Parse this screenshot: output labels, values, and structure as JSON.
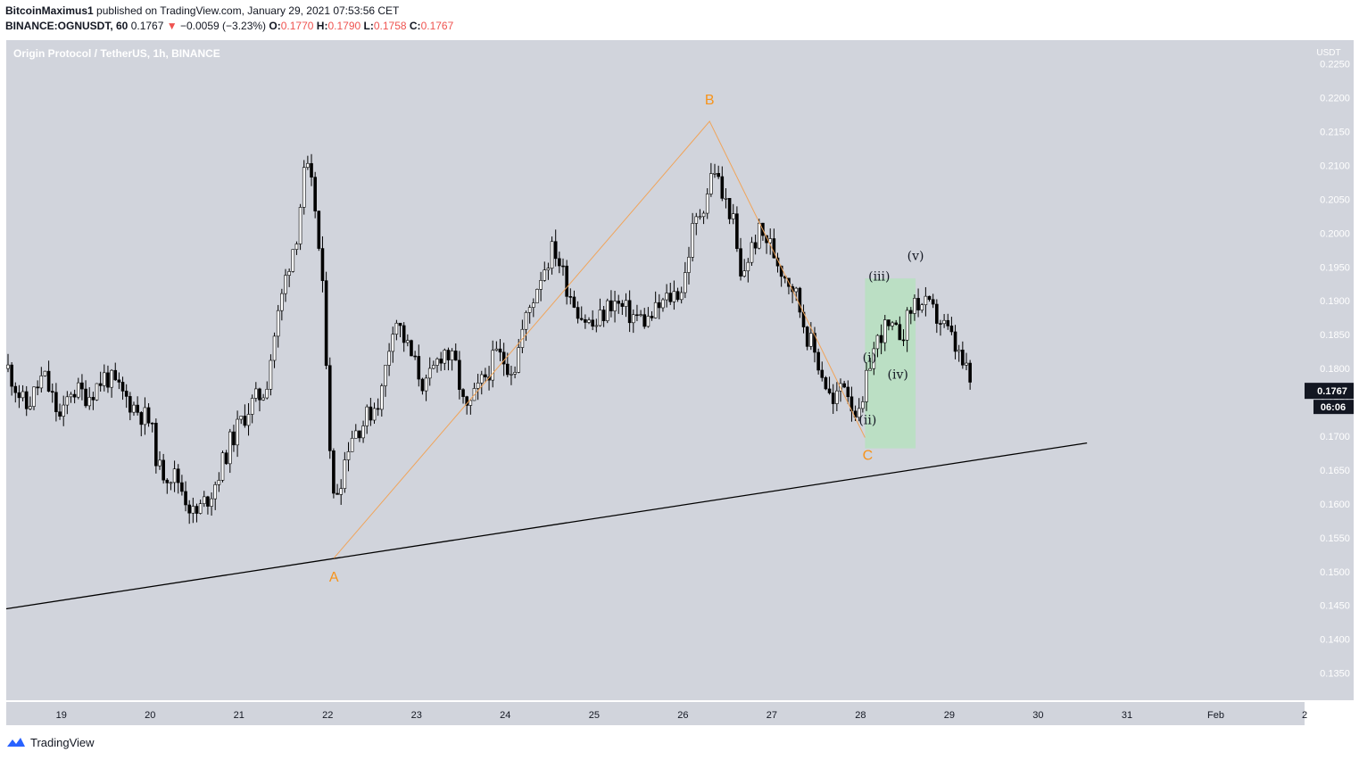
{
  "header": {
    "author": "BitcoinMaximus1",
    "published_text": "published on TradingView.com, January 29, 2021 07:53:56 CET",
    "symbol": "BINANCE:OGNUSDT, 60",
    "last": "0.1767",
    "change": "−0.0059 (−3.23%)",
    "o_label": "O:",
    "o": "0.1770",
    "h_label": "H:",
    "h": "0.1790",
    "l_label": "L:",
    "l": "0.1758",
    "c_label": "C:",
    "c": "0.1767"
  },
  "footer": {
    "brand": "TradingView"
  },
  "colors": {
    "plot_bg": "#d1d4dc",
    "candle": "#000000",
    "wave_label": "#f7931a",
    "wave_line": "#f0a45a",
    "box_fill": "#b7e1c0",
    "trendline": "#000000",
    "price_badge": "#131722"
  },
  "chart_data": {
    "type": "candlestick",
    "title": "Origin Protocol / TetherUS, 1h, BINANCE",
    "ylabel": "USDT",
    "ylim": [
      0.131,
      0.2285
    ],
    "y_ticks": [
      "0.2250",
      "0.2200",
      "0.2150",
      "0.2100",
      "0.2050",
      "0.2000",
      "0.1950",
      "0.1900",
      "0.1850",
      "0.1800",
      "0.1750",
      "0.1700",
      "0.1650",
      "0.1600",
      "0.1550",
      "0.1500",
      "0.1450",
      "0.1400",
      "0.1350"
    ],
    "x_ticks": [
      {
        "label": "19",
        "t": 19
      },
      {
        "label": "20",
        "t": 20
      },
      {
        "label": "21",
        "t": 21
      },
      {
        "label": "22",
        "t": 22
      },
      {
        "label": "23",
        "t": 23
      },
      {
        "label": "24",
        "t": 24
      },
      {
        "label": "25",
        "t": 25
      },
      {
        "label": "26",
        "t": 26
      },
      {
        "label": "27",
        "t": 27
      },
      {
        "label": "28",
        "t": 28
      },
      {
        "label": "29",
        "t": 29
      },
      {
        "label": "30",
        "t": 30
      },
      {
        "label": "31",
        "t": 31
      },
      {
        "label": "Feb",
        "t": 32
      },
      {
        "label": "2",
        "t": 33
      }
    ],
    "xlim": [
      18.38,
      33.0
    ],
    "current_price": "0.1767",
    "countdown": "06:06",
    "close_path": [
      [
        18.4,
        0.18
      ],
      [
        18.6,
        0.174
      ],
      [
        18.8,
        0.179
      ],
      [
        19.0,
        0.172
      ],
      [
        19.1,
        0.177
      ],
      [
        19.3,
        0.176
      ],
      [
        19.5,
        0.179
      ],
      [
        19.7,
        0.176
      ],
      [
        19.85,
        0.174
      ],
      [
        20.0,
        0.172
      ],
      [
        20.1,
        0.165
      ],
      [
        20.3,
        0.164
      ],
      [
        20.5,
        0.158
      ],
      [
        20.7,
        0.162
      ],
      [
        20.9,
        0.169
      ],
      [
        21.1,
        0.174
      ],
      [
        21.3,
        0.177
      ],
      [
        21.4,
        0.185
      ],
      [
        21.55,
        0.195
      ],
      [
        21.65,
        0.2
      ],
      [
        21.75,
        0.21
      ],
      [
        21.85,
        0.205
      ],
      [
        21.95,
        0.19
      ],
      [
        22.0,
        0.178
      ],
      [
        22.05,
        0.16
      ],
      [
        22.15,
        0.164
      ],
      [
        22.25,
        0.17
      ],
      [
        22.4,
        0.172
      ],
      [
        22.6,
        0.176
      ],
      [
        22.75,
        0.188
      ],
      [
        22.9,
        0.183
      ],
      [
        23.0,
        0.18
      ],
      [
        23.1,
        0.177
      ],
      [
        23.3,
        0.183
      ],
      [
        23.45,
        0.18
      ],
      [
        23.55,
        0.173
      ],
      [
        23.7,
        0.177
      ],
      [
        23.9,
        0.182
      ],
      [
        24.1,
        0.18
      ],
      [
        24.2,
        0.186
      ],
      [
        24.4,
        0.194
      ],
      [
        24.55,
        0.198
      ],
      [
        24.7,
        0.192
      ],
      [
        24.85,
        0.188
      ],
      [
        25.0,
        0.186
      ],
      [
        25.2,
        0.19
      ],
      [
        25.4,
        0.188
      ],
      [
        25.6,
        0.187
      ],
      [
        25.8,
        0.19
      ],
      [
        26.0,
        0.192
      ],
      [
        26.1,
        0.2
      ],
      [
        26.25,
        0.205
      ],
      [
        26.35,
        0.21
      ],
      [
        26.45,
        0.205
      ],
      [
        26.55,
        0.203
      ],
      [
        26.65,
        0.193
      ],
      [
        26.75,
        0.197
      ],
      [
        26.85,
        0.2
      ],
      [
        26.95,
        0.199
      ],
      [
        27.1,
        0.195
      ],
      [
        27.25,
        0.192
      ],
      [
        27.4,
        0.185
      ],
      [
        27.55,
        0.18
      ],
      [
        27.7,
        0.174
      ],
      [
        27.8,
        0.179
      ],
      [
        27.9,
        0.175
      ],
      [
        28.0,
        0.172
      ],
      [
        28.1,
        0.181
      ],
      [
        28.25,
        0.186
      ],
      [
        28.4,
        0.185
      ],
      [
        28.5,
        0.186
      ],
      [
        28.6,
        0.19
      ],
      [
        28.75,
        0.189
      ],
      [
        28.9,
        0.187
      ],
      [
        29.0,
        0.185
      ],
      [
        29.1,
        0.182
      ],
      [
        29.2,
        0.179
      ],
      [
        29.27,
        0.1767
      ]
    ],
    "trendline": [
      [
        18.38,
        0.1445
      ],
      [
        30.55,
        0.169
      ]
    ],
    "wave_path": [
      [
        22.07,
        0.152
      ],
      [
        26.3,
        0.2165
      ],
      [
        28.05,
        0.1698
      ]
    ],
    "wave_labels": [
      {
        "text": "A",
        "t": 22.07,
        "y": 0.1485,
        "kind": "primary"
      },
      {
        "text": "B",
        "t": 26.3,
        "y": 0.219,
        "kind": "primary"
      },
      {
        "text": "C",
        "t": 28.08,
        "y": 0.1665,
        "kind": "primary"
      },
      {
        "text": "(i)",
        "t": 28.1,
        "y": 0.181,
        "kind": "minor"
      },
      {
        "text": "(ii)",
        "t": 28.08,
        "y": 0.1718,
        "kind": "minor"
      },
      {
        "text": "(iii)",
        "t": 28.21,
        "y": 0.193,
        "kind": "minor"
      },
      {
        "text": "(iv)",
        "t": 28.42,
        "y": 0.1785,
        "kind": "minor"
      },
      {
        "text": "(v)",
        "t": 28.62,
        "y": 0.196,
        "kind": "minor"
      }
    ],
    "highlight_box": {
      "t0": 28.05,
      "t1": 28.62,
      "y0": 0.1682,
      "y1": 0.1933
    }
  }
}
